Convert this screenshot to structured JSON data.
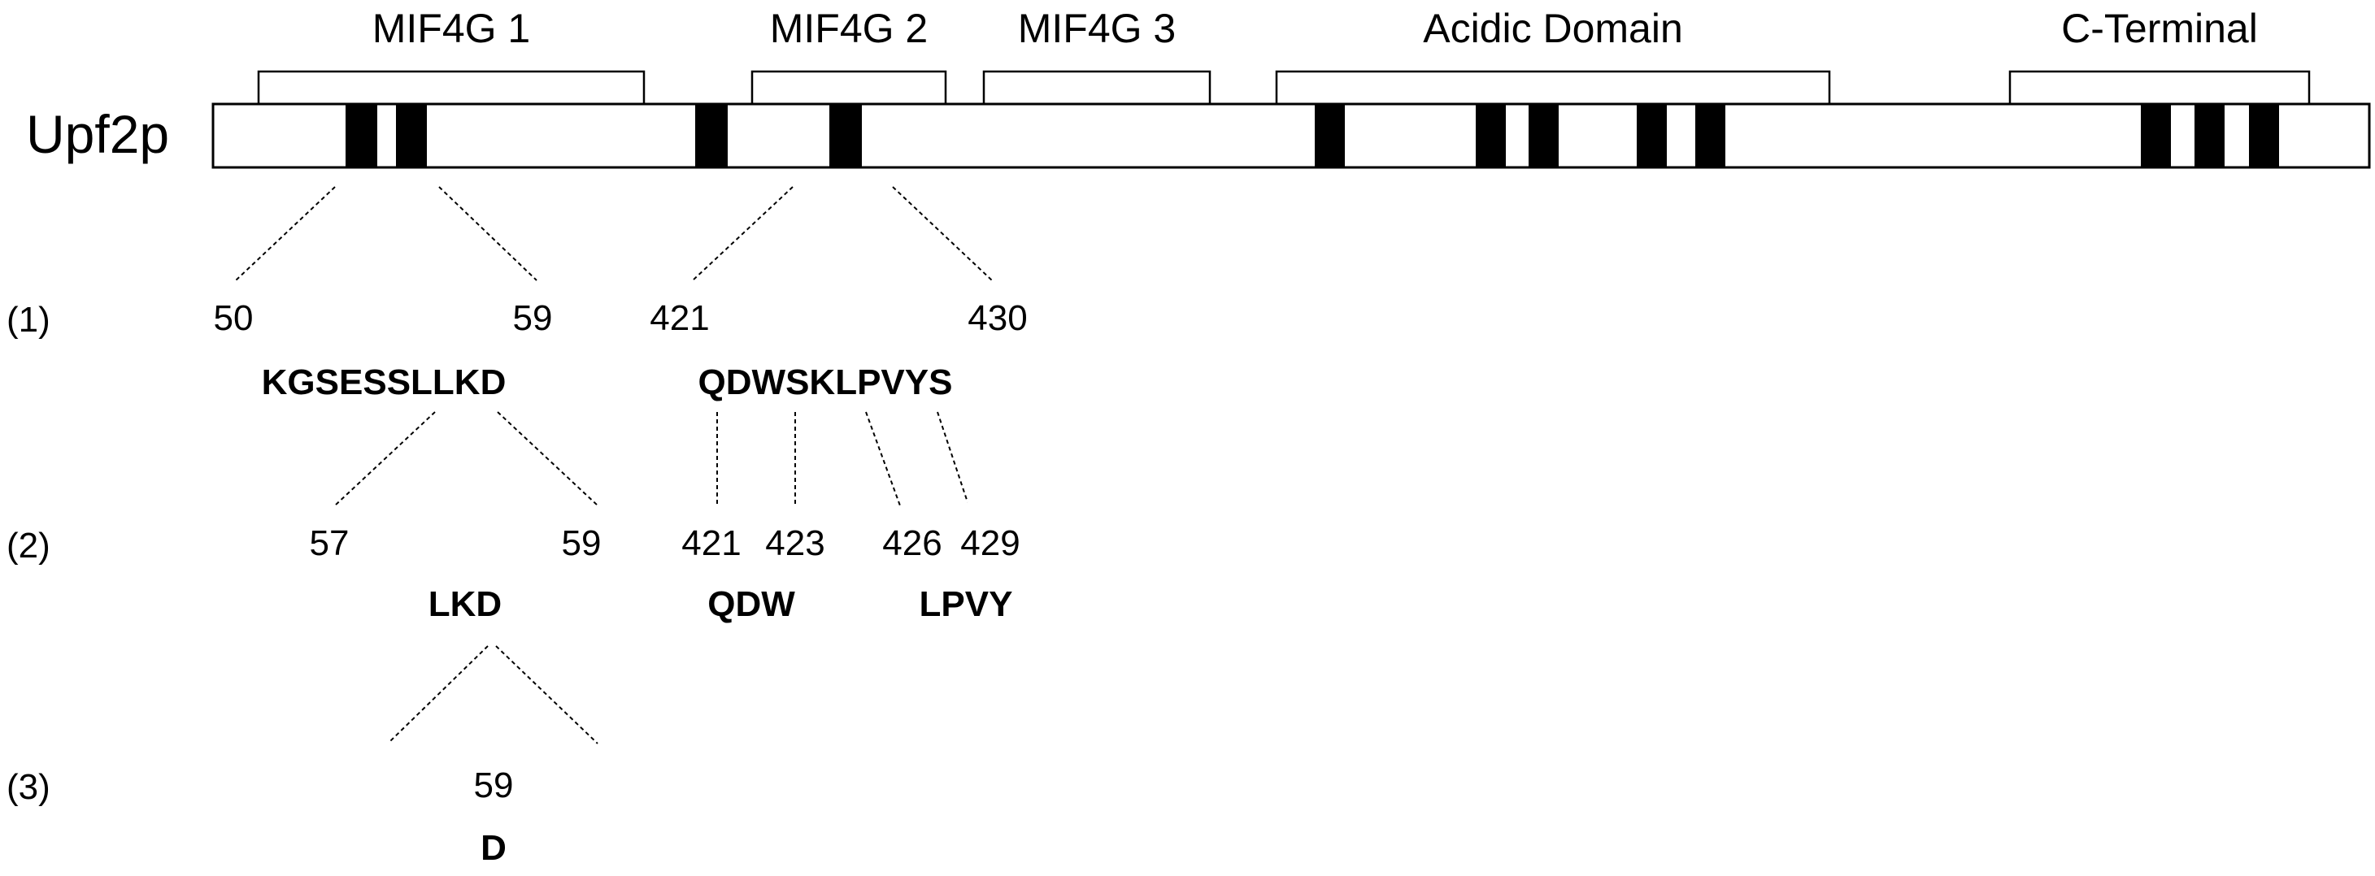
{
  "protein": {
    "name": "Upf2p"
  },
  "domains": [
    "MIF4G 1",
    "MIF4G 2",
    "MIF4G 3",
    "Acidic Domain",
    "C-Terminal"
  ],
  "row_labels": [
    "(1)",
    "(2)",
    "(3)"
  ],
  "row1": {
    "left": {
      "start": "50",
      "end": "59",
      "sequence": "KGSESSLLKD"
    },
    "right": {
      "start": "421",
      "end": "430",
      "sequence": "QDWSKLPVYS"
    }
  },
  "row2": {
    "left": {
      "start": "57",
      "end": "59",
      "sequence": "LKD"
    },
    "mid": {
      "start": "421",
      "end": "423",
      "sequence": "QDW"
    },
    "right": {
      "start": "426",
      "end": "429",
      "sequence": "LPVY"
    }
  },
  "row3": {
    "position": "59",
    "sequence": "D"
  },
  "colors": {
    "line": "#000000",
    "block": "#000000",
    "background": "#ffffff"
  }
}
